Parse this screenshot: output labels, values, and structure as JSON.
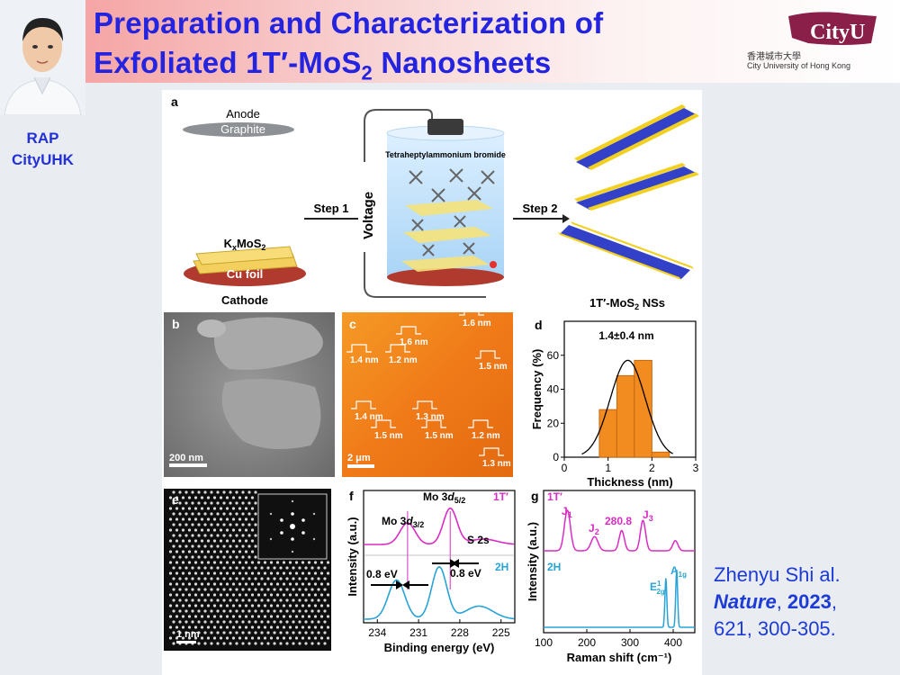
{
  "slide": {
    "title_line1": "Preparation and Characterization of",
    "title_line2_pre": "Exfoliated 1T′-MoS",
    "title_line2_sub": "2",
    "title_line2_post": " Nanosheets",
    "speaker_role_line1": "RAP",
    "speaker_role_line2": "CityUHK",
    "logo_text": "CityU",
    "logo_cn": "香港城市大學",
    "logo_en": "City University of Hong Kong"
  },
  "panel_a": {
    "label": "a",
    "anode": "Anode",
    "graphite": "Graphite",
    "kxmos2_pre": "K",
    "kxmos2_sub1": "x",
    "kxmos2_mid": "MoS",
    "kxmos2_sub2": "2",
    "cu_foil": "Cu foil",
    "cathode": "Cathode",
    "step1": "Step 1",
    "voltage": "Voltage",
    "electrolyte": "Tetraheptylammonium bromide",
    "step2": "Step 2",
    "product_pre": "1T′-MoS",
    "product_sub": "2",
    "product_post": " NSs"
  },
  "panel_b": {
    "label": "b",
    "scale": "200 nm"
  },
  "panel_c": {
    "label": "c",
    "scale": "2 μm",
    "heights": [
      "1.6 nm",
      "1.6 nm",
      "1.4 nm",
      "1.2 nm",
      "1.5 nm",
      "1.4 nm",
      "1.3 nm",
      "1.5 nm",
      "1.5 nm",
      "1.2 nm",
      "1.3 nm"
    ]
  },
  "panel_d": {
    "label": "d",
    "annotation": "1.4±0.4 nm"
  },
  "panel_e": {
    "label": "e",
    "scale": "1 nm"
  },
  "panel_f": {
    "label": "f",
    "mo32_pre": "Mo 3",
    "mo32_d": "d",
    "mo32_sub": "3/2",
    "mo52_pre": "Mo 3",
    "mo52_d": "d",
    "mo52_sub": "5/2",
    "s2s": "S 2s",
    "tag_1t": "1T′",
    "tag_2h": "2H",
    "shift_left": "0.8 eV",
    "shift_right": "0.8 eV"
  },
  "panel_g": {
    "label": "g",
    "tag_1t": "1T′",
    "tag_2h": "2H",
    "j1": "J",
    "j1_sub": "1",
    "j2": "J",
    "j2_sub": "2",
    "peak": "280.8",
    "j3": "J",
    "j3_sub": "3",
    "e2g": "E",
    "e2g_sup": "1",
    "e2g_sub": "2g",
    "a1g": "A",
    "a1g_sub": "1g"
  },
  "citation": {
    "line1": "Zhenyu Shi al.",
    "journal": "Nature",
    "sep": ", ",
    "year": "2023",
    "comma": ",",
    "line3": "621, 300-305."
  },
  "chart_data": [
    {
      "type": "bar",
      "panel": "d",
      "xlabel": "Thickness (nm)",
      "ylabel": "Frequency (%)",
      "xlim": [
        0,
        3
      ],
      "ylim": [
        0,
        80
      ],
      "xticks": [
        0,
        1,
        2,
        3
      ],
      "yticks": [
        0,
        20,
        40,
        60
      ],
      "x": [
        1.0,
        1.4,
        1.8,
        2.2
      ],
      "values": [
        28,
        48,
        57,
        3
      ],
      "fit": "gaussian",
      "fit_mean": 1.45,
      "fit_peak": 57,
      "fit_sigma": 0.4,
      "color_bar": "#f28b20",
      "grid": false
    },
    {
      "type": "line",
      "panel": "f",
      "xlabel": "Binding energy (eV)",
      "ylabel": "Intensity (a.u.)",
      "xlim": [
        235,
        224
      ],
      "xticks": [
        234,
        231,
        228,
        225
      ],
      "series_colors": {
        "1T": "#d92cc4",
        "2H": "#28a3d6"
      },
      "peaks_1T": [
        231.8,
        228.7,
        226.3
      ],
      "peaks_2H": [
        232.6,
        229.5,
        226.6
      ]
    },
    {
      "type": "line",
      "panel": "g",
      "xlabel": "Raman shift (cm⁻¹)",
      "ylabel": "Intensity (a.u.)",
      "xlim": [
        100,
        450
      ],
      "xticks": [
        100,
        200,
        300,
        400
      ],
      "series_colors": {
        "1T": "#d92cc4",
        "2H": "#28a3d6"
      },
      "peaks_1T": [
        155,
        218,
        280.8,
        330,
        405
      ],
      "peaks_2H": [
        383,
        408
      ]
    }
  ]
}
